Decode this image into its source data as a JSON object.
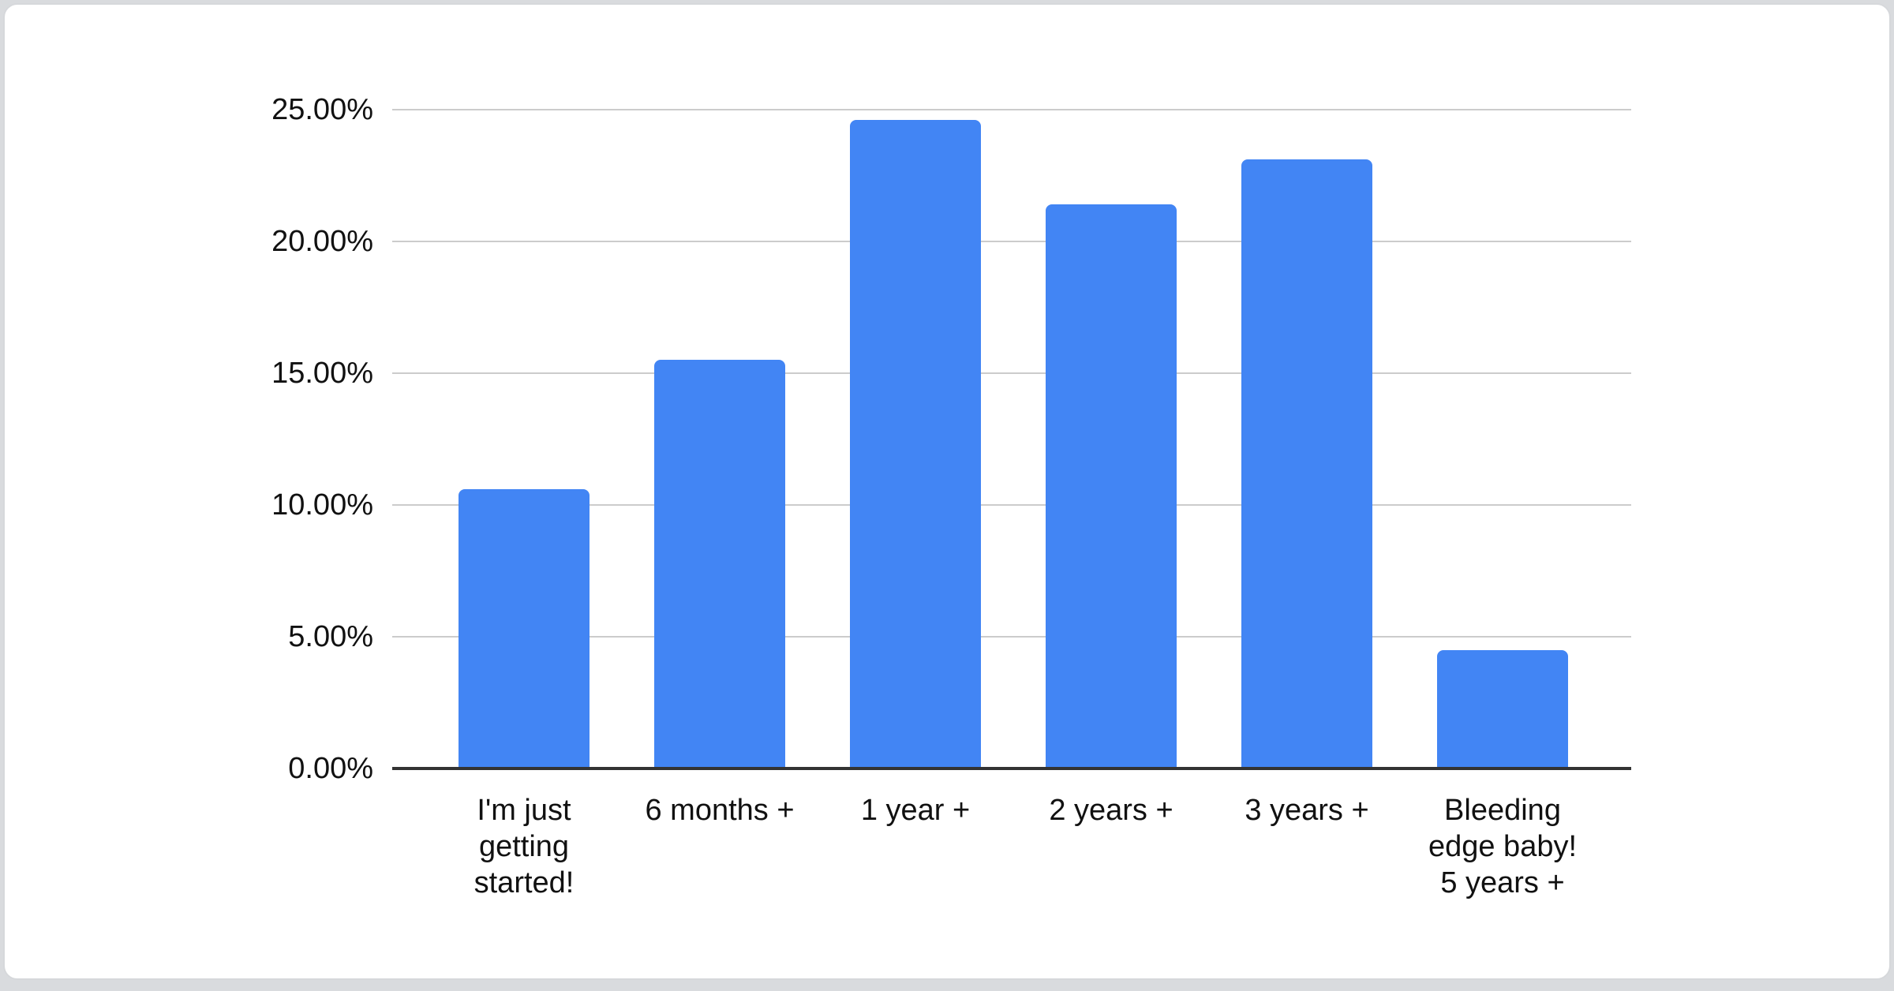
{
  "page": {
    "background_color": "#d9dbde",
    "card_background_color": "#ffffff",
    "card_border_color": "#d6d8db"
  },
  "chart_data": {
    "type": "bar",
    "title": "",
    "xlabel": "",
    "ylabel": "",
    "categories": [
      "I'm just getting started!",
      "6 months +",
      "1 year +",
      "2 years +",
      "3 years +",
      "Bleeding edge baby! 5 years +"
    ],
    "values": [
      10.6,
      15.5,
      24.6,
      21.4,
      23.1,
      4.5
    ],
    "unit": "%",
    "ylim": [
      0,
      25
    ],
    "y_ticks": [
      {
        "value": 25,
        "label": "25.00%"
      },
      {
        "value": 20,
        "label": "20.00%"
      },
      {
        "value": 15,
        "label": "15.00%"
      },
      {
        "value": 10,
        "label": "10.00%"
      },
      {
        "value": 5,
        "label": "5.00%"
      },
      {
        "value": 0,
        "label": "0.00%"
      }
    ],
    "grid": true,
    "legend_position": "none",
    "bar_color": "#4285f4",
    "grid_color": "#cccccc",
    "axis_color": "#333333",
    "text_color": "#111111"
  }
}
